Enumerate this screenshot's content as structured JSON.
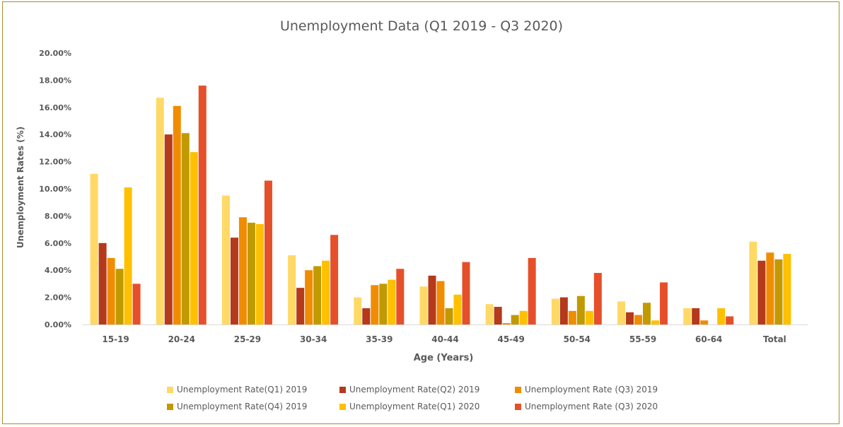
{
  "chart_data": {
    "type": "bar",
    "title": "Unemployment Data (Q1 2019 - Q3 2020)",
    "xlabel": "Age (Years)",
    "ylabel": "Unemployment Rates (%)",
    "ylim": [
      0,
      20
    ],
    "yticks": [
      "0.00%",
      "2.00%",
      "4.00%",
      "6.00%",
      "8.00%",
      "10.00%",
      "12.00%",
      "14.00%",
      "16.00%",
      "18.00%",
      "20.00%"
    ],
    "grid": false,
    "legend_position": "bottom",
    "categories": [
      "15-19",
      "20-24",
      "25-29",
      "30-34",
      "35-39",
      "40-44",
      "45-49",
      "50-54",
      "55-59",
      "60-64",
      "Total"
    ],
    "series": [
      {
        "name": "Unemployment Rate(Q1) 2019",
        "color": "#ffd966",
        "values": [
          11.1,
          16.7,
          9.5,
          5.1,
          2.0,
          2.8,
          1.5,
          1.9,
          1.7,
          1.2,
          6.1
        ]
      },
      {
        "name": "Unemployment Rate(Q2) 2019",
        "color": "#b5391b",
        "values": [
          6.0,
          14.0,
          6.4,
          2.7,
          1.2,
          3.6,
          1.3,
          2.0,
          0.9,
          1.2,
          4.7
        ]
      },
      {
        "name": "Unemployment Rate (Q3) 2019",
        "color": "#f08c00",
        "values": [
          4.9,
          16.1,
          7.9,
          4.0,
          2.9,
          3.2,
          0.1,
          1.0,
          0.7,
          0.3,
          5.3
        ]
      },
      {
        "name": "Unemployment Rate(Q4) 2019",
        "color": "#c09a00",
        "values": [
          4.1,
          14.1,
          7.5,
          4.3,
          3.0,
          1.2,
          0.7,
          2.1,
          1.6,
          0.0,
          4.8
        ]
      },
      {
        "name": "Unemployment Rate(Q1) 2020",
        "color": "#ffc000",
        "values": [
          10.1,
          12.7,
          7.4,
          4.7,
          3.3,
          2.2,
          1.0,
          1.0,
          0.3,
          1.2,
          5.2
        ]
      },
      {
        "name": "Unemployment Rate (Q3) 2020",
        "color": "#e5502a",
        "values": [
          3.0,
          17.6,
          10.6,
          6.6,
          4.1,
          4.6,
          4.9,
          3.8,
          3.1,
          0.6,
          null
        ]
      }
    ]
  }
}
